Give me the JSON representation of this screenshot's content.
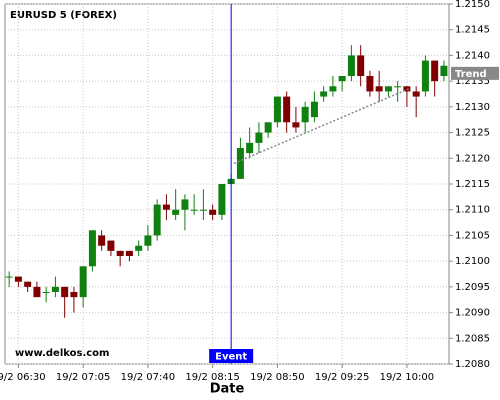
{
  "chart_data": {
    "type": "candlestick",
    "title": "EURUSD 5 (FOREX)",
    "xlabel": "Date",
    "watermark": "www.delkos.com",
    "categories": [
      null,
      "19/2 06:30",
      null,
      null,
      null,
      null,
      null,
      null,
      "19/2 07:05",
      null,
      null,
      null,
      null,
      null,
      null,
      "19/2 07:40",
      null,
      null,
      null,
      null,
      null,
      null,
      "19/2 08:15",
      null,
      null,
      null,
      null,
      null,
      null,
      "19/2 08:50",
      null,
      null,
      null,
      null,
      null,
      null,
      "19/2 09:25",
      null,
      null,
      null,
      null,
      null,
      null,
      "19/2 10:00",
      null,
      null,
      null,
      null
    ],
    "open": [
      1.2097,
      1.2097,
      1.2096,
      1.2095,
      1.2094,
      1.2094,
      1.2095,
      1.2094,
      1.2093,
      1.2099,
      1.2105,
      1.2104,
      1.2102,
      1.2102,
      1.2102,
      1.2103,
      1.2105,
      1.2111,
      1.2109,
      1.211,
      1.211,
      1.211,
      1.211,
      1.2109,
      1.2115,
      1.2116,
      1.2121,
      1.2123,
      1.2125,
      1.2127,
      1.2132,
      1.2127,
      1.2127,
      1.2128,
      1.2132,
      1.2133,
      1.2135,
      1.2136,
      1.214,
      1.2136,
      1.2134,
      1.2133,
      1.2134,
      1.2134,
      1.2133,
      1.2133,
      1.2139,
      1.2136
    ],
    "high": [
      1.2098,
      1.2097,
      1.2096,
      1.2096,
      1.2095,
      1.2097,
      1.2095,
      1.2095,
      1.2099,
      1.2106,
      1.2106,
      1.2104,
      1.2102,
      1.2102,
      1.2104,
      1.2107,
      1.2112,
      1.2113,
      1.2114,
      1.2113,
      1.2113,
      1.2114,
      1.2111,
      1.2115,
      1.2117,
      1.2124,
      1.2126,
      1.2127,
      1.2127,
      1.2132,
      1.2133,
      1.213,
      1.2131,
      1.2133,
      1.2134,
      1.2136,
      1.2136,
      1.2142,
      1.2142,
      1.2137,
      1.2137,
      1.2134,
      1.2135,
      1.2134,
      1.2134,
      1.214,
      1.2139,
      1.2139
    ],
    "low": [
      1.2095,
      1.2095,
      1.2094,
      1.2093,
      1.2092,
      1.2093,
      1.2089,
      1.209,
      1.2091,
      1.2098,
      1.2102,
      1.2101,
      1.2099,
      1.21,
      1.2101,
      1.2102,
      1.2104,
      1.2108,
      1.2108,
      1.2106,
      1.2109,
      1.2108,
      1.2108,
      1.2108,
      1.2115,
      1.2116,
      1.212,
      1.2121,
      1.2124,
      1.2126,
      1.2125,
      1.2125,
      1.2125,
      1.2127,
      1.2131,
      1.2132,
      1.2133,
      1.2135,
      1.2134,
      1.2132,
      1.2131,
      1.2132,
      1.2131,
      1.213,
      1.2128,
      1.2132,
      1.2132,
      1.2135
    ],
    "close": [
      1.2097,
      1.2096,
      1.2095,
      1.2093,
      1.2094,
      1.2095,
      1.2093,
      1.2093,
      1.2099,
      1.2106,
      1.2103,
      1.2102,
      1.2101,
      1.2101,
      1.2103,
      1.2105,
      1.2111,
      1.211,
      1.211,
      1.2112,
      1.211,
      1.211,
      1.2109,
      1.2115,
      1.2116,
      1.2122,
      1.2123,
      1.2125,
      1.2127,
      1.2132,
      1.2127,
      1.2126,
      1.213,
      1.2131,
      1.2133,
      1.2134,
      1.2136,
      1.214,
      1.2136,
      1.2133,
      1.2133,
      1.2134,
      1.2134,
      1.2133,
      1.2132,
      1.2139,
      1.2135,
      1.2138
    ],
    "up_color": "#108010",
    "down_color": "#800000",
    "ylim": [
      1.208,
      1.215
    ],
    "yticks": [
      {
        "value": 1.208,
        "label": "1.2080"
      },
      {
        "value": 1.2085,
        "label": "1.2085"
      },
      {
        "value": 1.209,
        "label": "1.2090"
      },
      {
        "value": 1.2095,
        "label": "1.2095"
      },
      {
        "value": 1.21,
        "label": "1.2100"
      },
      {
        "value": 1.2105,
        "label": "1.2105"
      },
      {
        "value": 1.211,
        "label": "1.2110"
      },
      {
        "value": 1.2115,
        "label": "1.2115"
      },
      {
        "value": 1.212,
        "label": "1.2120"
      },
      {
        "value": 1.2125,
        "label": "1.2125"
      },
      {
        "value": 1.213,
        "label": "1.2130"
      },
      {
        "value": 1.2135,
        "label": "1.2135"
      },
      {
        "value": 1.214,
        "label": "1.2140"
      },
      {
        "value": 1.2145,
        "label": "1.2145"
      },
      {
        "value": 1.215,
        "label": "1.2150"
      }
    ],
    "grid": true,
    "trend": {
      "label": "Trend",
      "x": [
        24.3,
        43.2
      ],
      "y": [
        1.2119,
        1.21335
      ],
      "color": "#888888"
    },
    "event": {
      "label": "Event",
      "x": 24,
      "color": "#0000ff"
    }
  }
}
